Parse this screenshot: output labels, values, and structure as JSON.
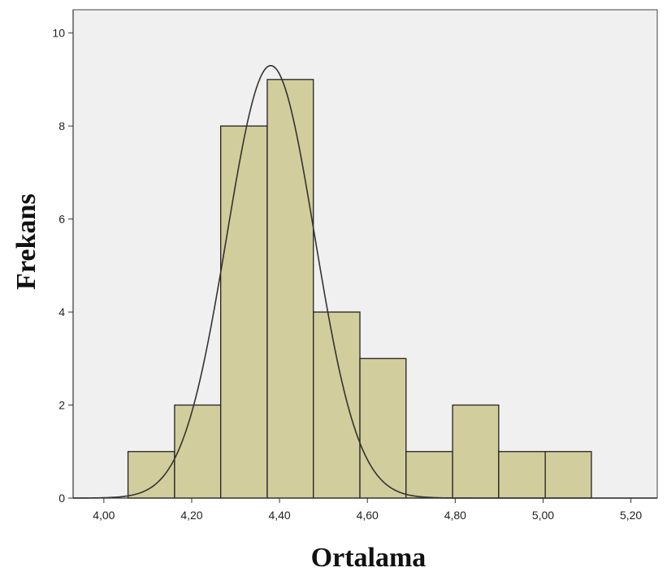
{
  "chart_data": {
    "type": "bar",
    "subtype": "histogram",
    "xlabel": "Ortalama",
    "ylabel": "Frekans",
    "xlim": [
      3.93,
      5.26
    ],
    "ylim": [
      0,
      10.5
    ],
    "x_ticks": [
      4.0,
      4.2,
      4.4,
      4.6,
      4.8,
      5.0,
      5.2
    ],
    "x_tick_labels": [
      "4,00",
      "4,20",
      "4,40",
      "4,60",
      "4,80",
      "5,00",
      "5,20"
    ],
    "y_ticks": [
      0,
      2,
      4,
      6,
      8,
      10
    ],
    "y_tick_labels": [
      "0",
      "2",
      "4",
      "6",
      "8",
      "10"
    ],
    "bins": [
      {
        "start": 4.055,
        "end": 4.161,
        "count": 1
      },
      {
        "start": 4.161,
        "end": 4.266,
        "count": 2
      },
      {
        "start": 4.266,
        "end": 4.372,
        "count": 8
      },
      {
        "start": 4.372,
        "end": 4.477,
        "count": 9
      },
      {
        "start": 4.477,
        "end": 4.583,
        "count": 4
      },
      {
        "start": 4.583,
        "end": 4.688,
        "count": 3
      },
      {
        "start": 4.688,
        "end": 4.794,
        "count": 1
      },
      {
        "start": 4.794,
        "end": 4.899,
        "count": 2
      },
      {
        "start": 4.899,
        "end": 5.005,
        "count": 1
      },
      {
        "start": 5.005,
        "end": 5.11,
        "count": 1
      }
    ],
    "normal_curve": {
      "mean": 4.38,
      "sd": 0.1,
      "peak": 9.3
    },
    "grid": false,
    "colors": {
      "plot_background": "#f0f0f0",
      "bar_fill": "#d2cd9c",
      "bar_stroke": "#222222",
      "curve": "#333333"
    }
  }
}
